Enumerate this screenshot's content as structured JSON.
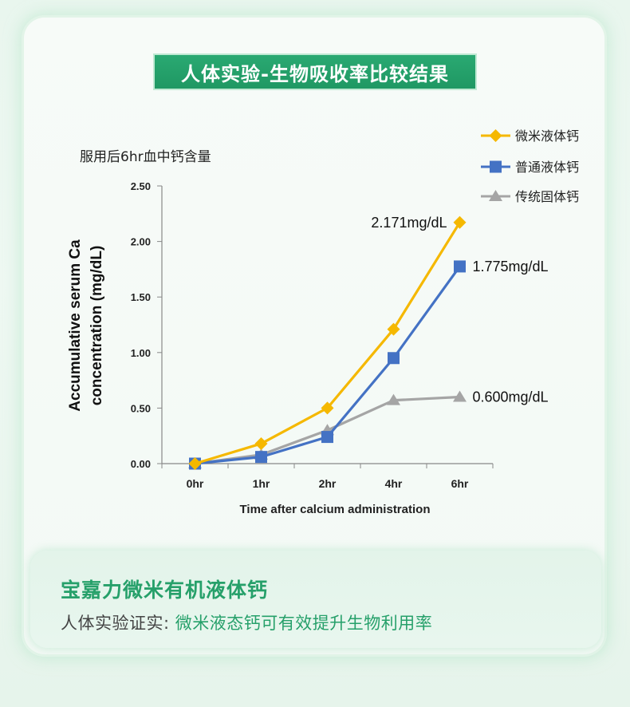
{
  "banner": {
    "title": "人体实验-生物吸收率比较结果"
  },
  "footer": {
    "brand": "宝嘉力微米有机液体钙",
    "claim_lead": "人体实验证实:",
    "claim_text": " 微米液态钙可有效提升生物利用率"
  },
  "chart_data": {
    "type": "line",
    "title": "服用后6hr血中钙含量",
    "xlabel": "Time after calcium administration",
    "ylabel_line1": "Accumulative serum Ca",
    "ylabel_line2": "concentration (mg/dL)",
    "categories": [
      "0hr",
      "1hr",
      "2hr",
      "4hr",
      "6hr"
    ],
    "ylim": [
      0,
      2.5
    ],
    "yticks": [
      "0.00",
      "0.50",
      "1.00",
      "1.50",
      "2.00",
      "2.50"
    ],
    "grid": false,
    "legend_position": "top-right",
    "series": [
      {
        "name": "微米液体钙",
        "color": "#f5b800",
        "marker": "diamond",
        "values": [
          0.0,
          0.18,
          0.5,
          1.21,
          2.171
        ],
        "end_label": "2.171mg/dL"
      },
      {
        "name": "普通液体钙",
        "color": "#4472c4",
        "marker": "square",
        "values": [
          0.0,
          0.06,
          0.24,
          0.95,
          1.775
        ],
        "end_label": "1.775mg/dL"
      },
      {
        "name": "传统固体钙",
        "color": "#a5a5a5",
        "marker": "triangle",
        "values": [
          0.0,
          0.08,
          0.3,
          0.57,
          0.6
        ],
        "end_label": "0.600mg/dL"
      }
    ]
  }
}
